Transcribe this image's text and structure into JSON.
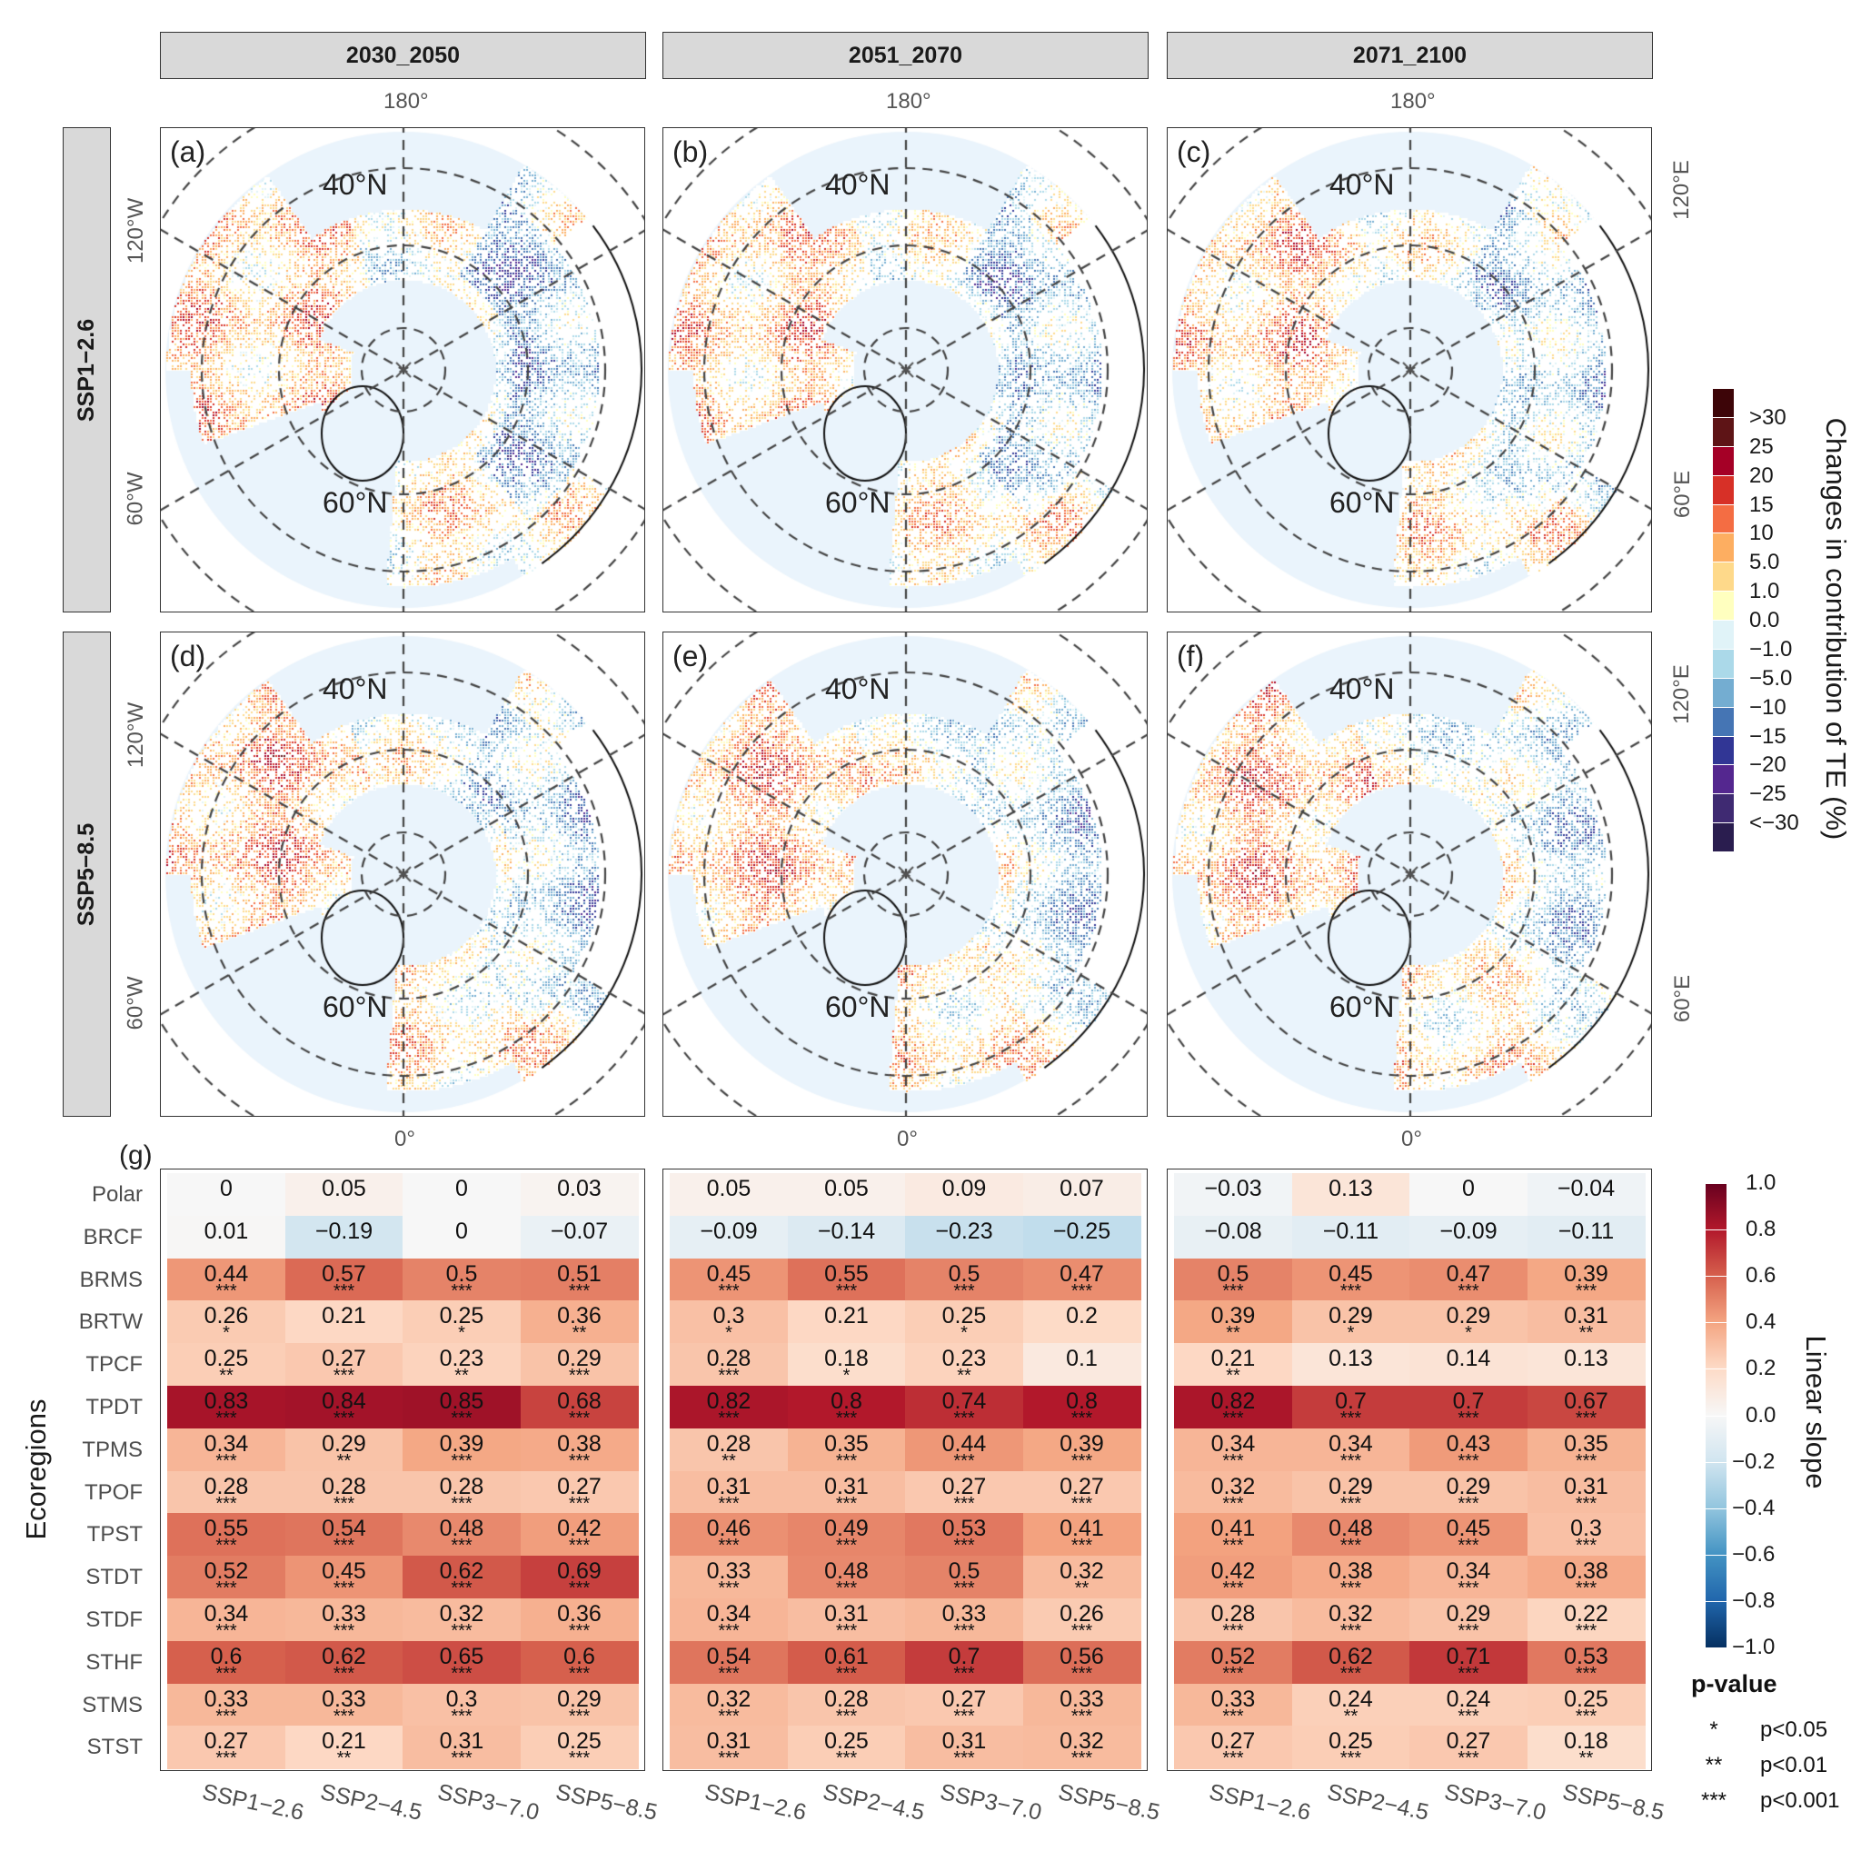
{
  "columns": [
    "2030_2050",
    "2051_2070",
    "2071_2100"
  ],
  "rows": [
    "SSP1−2.6",
    "SSP5−8.5"
  ],
  "maps": {
    "panel_letters": [
      "(a)",
      "(b)",
      "(c)",
      "(d)",
      "(e)",
      "(f)"
    ],
    "lat_labels": [
      "40°N",
      "60°N"
    ],
    "lon_top": "180°",
    "lon_bottom": "0°",
    "lon_left": [
      "120°W",
      "60°W"
    ],
    "lon_right": [
      "120°E",
      "60°E"
    ],
    "ocean_color": "#eaf4fc"
  },
  "map_legend": {
    "title": "Changes in contribution of TE (%)",
    "labels": [
      ">30",
      "25",
      "20",
      "15",
      "10",
      "5.0",
      "1.0",
      "0.0",
      "−1.0",
      "−5.0",
      "−10",
      "−15",
      "−20",
      "−25",
      "<−30"
    ],
    "colors": [
      "#3d0508",
      "#5e1416",
      "#a50026",
      "#d73027",
      "#f46d43",
      "#fdae61",
      "#fed98a",
      "#ffffbf",
      "#e0f3f8",
      "#abd9e9",
      "#74add1",
      "#4575b4",
      "#313695",
      "#54278f",
      "#3f2a72",
      "#2a1d4f"
    ]
  },
  "heatmap_legend": {
    "title": "Linear slope",
    "ticks": [
      "1.0",
      "0.8",
      "0.6",
      "0.4",
      "0.2",
      "0.0",
      "−0.2",
      "−0.4",
      "−0.6",
      "−0.8",
      "−1.0"
    ],
    "range": [
      -1,
      1
    ],
    "palette": "RdBu",
    "pvalue_title": "p-value",
    "pvalue_items": [
      {
        "symbol": "*",
        "label": "p<0.05"
      },
      {
        "symbol": "**",
        "label": "p<0.01"
      },
      {
        "symbol": "***",
        "label": "p<0.001"
      }
    ]
  },
  "heatmap_panel_label": "(g)",
  "ylabel": "Ecoregions",
  "chart_data": [
    {
      "type": "heatmap",
      "panel": "2030_2050",
      "x": [
        "SSP1−2.6",
        "SSP2−4.5",
        "SSP3−7.0",
        "SSP5−8.5"
      ],
      "y": [
        "Polar",
        "BRCF",
        "BRMS",
        "BRTW",
        "TPCF",
        "TPDT",
        "TPMS",
        "TPOF",
        "TPST",
        "STDT",
        "STDF",
        "STHF",
        "STMS",
        "STST"
      ],
      "ylabel": "Ecoregions",
      "values": [
        [
          0,
          0.05,
          0,
          0.03
        ],
        [
          0.01,
          -0.19,
          0,
          -0.07
        ],
        [
          0.44,
          0.57,
          0.5,
          0.51
        ],
        [
          0.26,
          0.21,
          0.25,
          0.36
        ],
        [
          0.25,
          0.27,
          0.23,
          0.29
        ],
        [
          0.83,
          0.84,
          0.85,
          0.68
        ],
        [
          0.34,
          0.29,
          0.39,
          0.38
        ],
        [
          0.28,
          0.28,
          0.28,
          0.27
        ],
        [
          0.55,
          0.54,
          0.48,
          0.42
        ],
        [
          0.52,
          0.45,
          0.62,
          0.69
        ],
        [
          0.34,
          0.33,
          0.32,
          0.36
        ],
        [
          0.6,
          0.62,
          0.65,
          0.6
        ],
        [
          0.33,
          0.33,
          0.3,
          0.29
        ],
        [
          0.27,
          0.21,
          0.31,
          0.25
        ]
      ],
      "significance": [
        [
          "",
          "",
          "",
          ""
        ],
        [
          "",
          "",
          "",
          ""
        ],
        [
          "***",
          "***",
          "***",
          "***"
        ],
        [
          "*",
          "",
          "*",
          "**"
        ],
        [
          "**",
          "***",
          "**",
          "***"
        ],
        [
          "***",
          "***",
          "***",
          "***"
        ],
        [
          "***",
          "**",
          "***",
          "***"
        ],
        [
          "***",
          "***",
          "***",
          "***"
        ],
        [
          "***",
          "***",
          "***",
          "***"
        ],
        [
          "***",
          "***",
          "***",
          "***"
        ],
        [
          "***",
          "***",
          "***",
          "***"
        ],
        [
          "***",
          "***",
          "***",
          "***"
        ],
        [
          "***",
          "***",
          "***",
          "***"
        ],
        [
          "***",
          "**",
          "***",
          "***"
        ]
      ]
    },
    {
      "type": "heatmap",
      "panel": "2051_2070",
      "x": [
        "SSP1−2.6",
        "SSP2−4.5",
        "SSP3−7.0",
        "SSP5−8.5"
      ],
      "y": [
        "Polar",
        "BRCF",
        "BRMS",
        "BRTW",
        "TPCF",
        "TPDT",
        "TPMS",
        "TPOF",
        "TPST",
        "STDT",
        "STDF",
        "STHF",
        "STMS",
        "STST"
      ],
      "values": [
        [
          0.05,
          0.05,
          0.09,
          0.07
        ],
        [
          -0.09,
          -0.14,
          -0.23,
          -0.25
        ],
        [
          0.45,
          0.55,
          0.5,
          0.47
        ],
        [
          0.3,
          0.21,
          0.25,
          0.2
        ],
        [
          0.28,
          0.18,
          0.23,
          0.1
        ],
        [
          0.82,
          0.8,
          0.74,
          0.8
        ],
        [
          0.28,
          0.35,
          0.44,
          0.39
        ],
        [
          0.31,
          0.31,
          0.27,
          0.27
        ],
        [
          0.46,
          0.49,
          0.53,
          0.41
        ],
        [
          0.33,
          0.48,
          0.5,
          0.32
        ],
        [
          0.34,
          0.31,
          0.33,
          0.26
        ],
        [
          0.54,
          0.61,
          0.7,
          0.56
        ],
        [
          0.32,
          0.28,
          0.27,
          0.33
        ],
        [
          0.31,
          0.25,
          0.31,
          0.32
        ]
      ],
      "significance": [
        [
          "",
          "",
          "",
          ""
        ],
        [
          "",
          "",
          "",
          ""
        ],
        [
          "***",
          "***",
          "***",
          "***"
        ],
        [
          "*",
          "",
          "*",
          ""
        ],
        [
          "***",
          "*",
          "**",
          ""
        ],
        [
          "***",
          "***",
          "***",
          "***"
        ],
        [
          "**",
          "***",
          "***",
          "***"
        ],
        [
          "***",
          "***",
          "***",
          "***"
        ],
        [
          "***",
          "***",
          "***",
          "***"
        ],
        [
          "***",
          "***",
          "***",
          "**"
        ],
        [
          "***",
          "***",
          "***",
          "***"
        ],
        [
          "***",
          "***",
          "***",
          "***"
        ],
        [
          "***",
          "***",
          "***",
          "***"
        ],
        [
          "***",
          "***",
          "***",
          "***"
        ]
      ]
    },
    {
      "type": "heatmap",
      "panel": "2071_2100",
      "x": [
        "SSP1−2.6",
        "SSP2−4.5",
        "SSP3−7.0",
        "SSP5−8.5"
      ],
      "y": [
        "Polar",
        "BRCF",
        "BRMS",
        "BRTW",
        "TPCF",
        "TPDT",
        "TPMS",
        "TPOF",
        "TPST",
        "STDT",
        "STDF",
        "STHF",
        "STMS",
        "STST"
      ],
      "values": [
        [
          -0.03,
          0.13,
          0,
          -0.04
        ],
        [
          -0.08,
          -0.11,
          -0.09,
          -0.11
        ],
        [
          0.5,
          0.45,
          0.47,
          0.39
        ],
        [
          0.39,
          0.29,
          0.29,
          0.31
        ],
        [
          0.21,
          0.13,
          0.14,
          0.13
        ],
        [
          0.82,
          0.7,
          0.7,
          0.67
        ],
        [
          0.34,
          0.34,
          0.43,
          0.35
        ],
        [
          0.32,
          0.29,
          0.29,
          0.31
        ],
        [
          0.41,
          0.48,
          0.45,
          0.3
        ],
        [
          0.42,
          0.38,
          0.34,
          0.38
        ],
        [
          0.28,
          0.32,
          0.29,
          0.22
        ],
        [
          0.52,
          0.62,
          0.71,
          0.53
        ],
        [
          0.33,
          0.24,
          0.24,
          0.25
        ],
        [
          0.27,
          0.25,
          0.27,
          0.18
        ]
      ],
      "significance": [
        [
          "",
          "",
          "",
          ""
        ],
        [
          "",
          "",
          "",
          ""
        ],
        [
          "***",
          "***",
          "***",
          "***"
        ],
        [
          "**",
          "*",
          "*",
          "**"
        ],
        [
          "**",
          "",
          "",
          ""
        ],
        [
          "***",
          "***",
          "***",
          "***"
        ],
        [
          "***",
          "***",
          "***",
          "***"
        ],
        [
          "***",
          "***",
          "***",
          "***"
        ],
        [
          "***",
          "***",
          "***",
          "***"
        ],
        [
          "***",
          "***",
          "***",
          "***"
        ],
        [
          "***",
          "***",
          "***",
          "***"
        ],
        [
          "***",
          "***",
          "***",
          "***"
        ],
        [
          "***",
          "**",
          "***",
          "***"
        ],
        [
          "***",
          "***",
          "***",
          "**"
        ]
      ]
    }
  ]
}
